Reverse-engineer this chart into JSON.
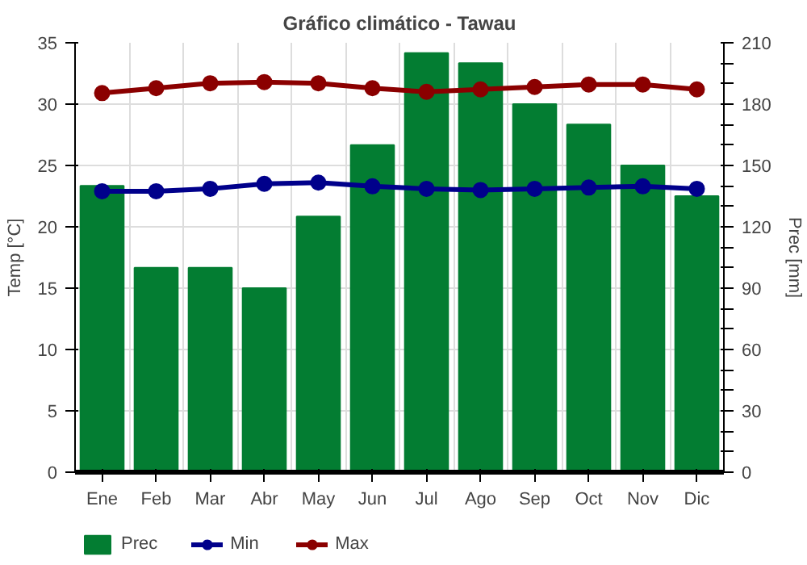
{
  "chart_data": {
    "type": "bar",
    "title": "Gráfico climático - Tawau",
    "ylabel": "Temp [°C]",
    "y2label": "Prec [mm]",
    "categories": [
      "Ene",
      "Feb",
      "Mar",
      "Abr",
      "May",
      "Jun",
      "Jul",
      "Ago",
      "Sep",
      "Oct",
      "Nov",
      "Dic"
    ],
    "series": [
      {
        "name": "Prec",
        "axis": "y2",
        "color": "#037d32",
        "values": [
          140,
          100,
          100,
          90,
          125,
          160,
          205,
          200,
          180,
          170,
          150,
          135
        ]
      },
      {
        "name": "Min",
        "type": "line",
        "color": "#00008b",
        "values": [
          22.9,
          22.9,
          23.1,
          23.5,
          23.6,
          23.3,
          23.1,
          23.0,
          23.1,
          23.2,
          23.3,
          23.1
        ]
      },
      {
        "name": "Max",
        "type": "line",
        "color": "#8b0000",
        "values": [
          30.9,
          31.3,
          31.7,
          31.8,
          31.7,
          31.3,
          31.0,
          31.2,
          31.4,
          31.6,
          31.6,
          31.2
        ]
      }
    ],
    "ylim": [
      0,
      35
    ],
    "yticks": [
      0,
      5,
      10,
      15,
      20,
      25,
      30,
      35
    ],
    "y2lim": [
      0,
      210
    ],
    "y2ticks": [
      0,
      {
        "value": 10,
        "label": null
      },
      {
        "value": 20,
        "label": null
      },
      30,
      {
        "value": 40,
        "label": null
      },
      {
        "value": 50,
        "label": null
      },
      60,
      {
        "value": 70,
        "label": null
      },
      {
        "value": 80,
        "label": null
      },
      90,
      {
        "value": 100,
        "label": null
      },
      {
        "value": 110,
        "label": null
      },
      120,
      {
        "value": 130,
        "label": null
      },
      {
        "value": 140,
        "label": null
      },
      150,
      {
        "value": 160,
        "label": null
      },
      {
        "value": 170,
        "label": null
      },
      180,
      {
        "value": 190,
        "label": null
      },
      {
        "value": 200,
        "label": null
      },
      210
    ],
    "grid": true,
    "legend": "bottom",
    "marker": "circle",
    "line_style": "solid"
  }
}
